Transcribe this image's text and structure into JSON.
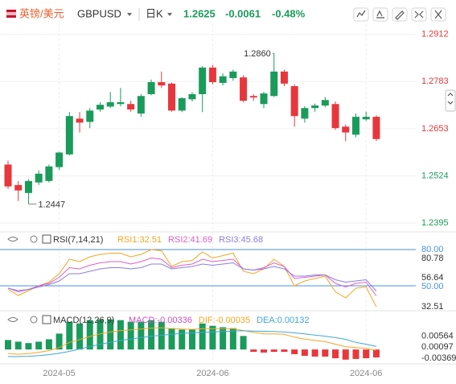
{
  "header": {
    "name": "英镑/美元",
    "symbol": "GBPUSD",
    "period": "日K",
    "price": "1.2625",
    "change": "-0.0061",
    "change_pct": "-0.48%"
  },
  "chart_data": [
    {
      "type": "candlestick",
      "up_color": "#1a9b5c",
      "down_color": "#e8373c",
      "categories": [
        null,
        null,
        null,
        null,
        null,
        "2024-05",
        null,
        null,
        null,
        null,
        null,
        null,
        null,
        null,
        null,
        null,
        null,
        null,
        null,
        null,
        "2024-06",
        null,
        null,
        null,
        null,
        null,
        null,
        null,
        null,
        null,
        null,
        null,
        null,
        null,
        null,
        "2024-06",
        null
      ],
      "open": [
        1.2555,
        1.2499,
        1.2477,
        1.2506,
        1.251,
        1.2548,
        1.2583,
        1.2681,
        1.2672,
        1.2706,
        1.2714,
        1.2721,
        1.2721,
        1.2695,
        1.2748,
        1.2781,
        1.2777,
        1.2703,
        1.2734,
        1.2748,
        1.2821,
        1.2779,
        1.2792,
        1.2794,
        1.2743,
        1.2721,
        1.2743,
        1.281,
        1.277,
        1.2681,
        1.271,
        1.2717,
        1.2721,
        1.2659,
        1.2637,
        1.2679,
        1.2686
      ],
      "high": [
        1.2566,
        1.251,
        1.2515,
        1.2539,
        1.2555,
        1.259,
        1.2699,
        1.2699,
        1.271,
        1.2726,
        1.2754,
        1.2765,
        1.273,
        1.2748,
        1.2788,
        1.281,
        1.278,
        1.274,
        1.2754,
        1.2825,
        1.2828,
        1.2805,
        1.2815,
        1.28,
        1.2748,
        1.2755,
        1.286,
        1.2815,
        1.2775,
        1.2715,
        1.2722,
        1.274,
        1.2728,
        1.2665,
        1.2695,
        1.27,
        1.269
      ],
      "low": [
        1.2488,
        1.2455,
        1.2447,
        1.2499,
        1.2506,
        1.254,
        1.258,
        1.2643,
        1.2655,
        1.27,
        1.271,
        1.2715,
        1.27,
        1.2686,
        1.2745,
        1.2765,
        1.27,
        1.2699,
        1.2728,
        1.2699,
        1.2775,
        1.2772,
        1.2785,
        1.2726,
        1.273,
        1.271,
        1.274,
        1.277,
        1.2659,
        1.267,
        1.27,
        1.2712,
        1.265,
        1.2619,
        1.263,
        1.2675,
        1.262
      ],
      "close": [
        1.2495,
        1.2484,
        1.251,
        1.253,
        1.255,
        1.2588,
        1.2688,
        1.267,
        1.2703,
        1.2719,
        1.2726,
        1.2726,
        1.2706,
        1.2743,
        1.2781,
        1.2772,
        1.2703,
        1.2737,
        1.2748,
        1.2821,
        1.2781,
        1.2797,
        1.281,
        1.273,
        1.2739,
        1.275,
        1.281,
        1.2777,
        1.2688,
        1.271,
        1.2717,
        1.2732,
        1.2655,
        1.2643,
        1.2686,
        1.2686,
        1.2625
      ],
      "high_label": "1.2860",
      "low_label": "1.2447",
      "ylim": [
        1.2375,
        1.294
      ],
      "yticks": [
        1.2912,
        1.2783,
        1.2653,
        1.2524,
        1.2395
      ],
      "grid": true
    },
    {
      "type": "line",
      "title": "RSI(7,14,21)",
      "series": [
        {
          "name": "RSI1:32.51",
          "color": "#f5a623",
          "values": [
            47,
            42,
            46,
            50,
            53,
            60,
            72,
            70,
            74,
            76,
            77,
            77,
            74,
            76,
            80,
            79,
            66,
            70,
            71,
            78,
            73,
            75,
            77,
            62,
            60,
            64,
            72,
            66,
            50,
            54,
            56,
            58,
            45,
            40,
            48,
            49,
            32.51
          ]
        },
        {
          "name": "RSI2:41.69",
          "color": "#dd5fc2",
          "values": [
            48,
            45,
            47,
            50,
            52,
            57,
            65,
            64,
            67,
            69,
            70,
            70,
            68,
            70,
            73,
            72,
            65,
            67,
            68,
            72,
            70,
            71,
            72,
            64,
            63,
            65,
            69,
            66,
            56,
            57,
            58,
            59,
            52,
            49,
            52,
            53,
            41.69
          ]
        },
        {
          "name": "RSI3:45.68",
          "color": "#8b7de0",
          "values": [
            48,
            46,
            47,
            49,
            51,
            54,
            60,
            60,
            62,
            64,
            65,
            65,
            64,
            65,
            68,
            68,
            64,
            65,
            66,
            68,
            67,
            68,
            69,
            64,
            63,
            64,
            66,
            64,
            58,
            58,
            59,
            59,
            55,
            53,
            54,
            55,
            45.68
          ]
        }
      ],
      "ylim": [
        30,
        86.7
      ],
      "yticks": [
        {
          "value": 80,
          "label": "80.00"
        },
        80.78,
        56.64,
        {
          "value": 50,
          "label": "50.00"
        },
        32.51
      ],
      "hlines": [
        80,
        50
      ],
      "hline_color": "#4a90e2"
    },
    {
      "type": "bar",
      "title": "MACD(12,26,9)",
      "name": "MACD:-0.00336",
      "name_color": "#c74fc4",
      "up_color": "#1a9b5c",
      "down_color": "#e8373c",
      "values": [
        0.004,
        0.0033,
        0.0027,
        0.0033,
        0.0043,
        0.0067,
        0.0117,
        0.011,
        0.0124,
        0.0127,
        0.0127,
        0.0124,
        0.0117,
        0.0117,
        0.0124,
        0.0117,
        0.009,
        0.0084,
        0.0084,
        0.011,
        0.01,
        0.0094,
        0.009,
        0.0057,
        -0.001,
        -0.0013,
        -0.001,
        -0.001,
        -0.002,
        -0.0027,
        -0.003,
        -0.003,
        -0.0037,
        -0.0043,
        -0.004,
        -0.0037,
        -0.00336
      ],
      "lines": [
        {
          "name": "DIF:-0.00035",
          "color": "#f5a623",
          "values": [
            -0.0017,
            -0.002,
            -0.0018,
            -0.0012,
            -0.0005,
            0.0008,
            0.003,
            0.0042,
            0.0055,
            0.0066,
            0.0074,
            0.008,
            0.0083,
            0.0086,
            0.009,
            0.0092,
            0.0088,
            0.0086,
            0.0085,
            0.0088,
            0.0088,
            0.0088,
            0.0088,
            0.008,
            0.0072,
            0.0066,
            0.0066,
            0.0064,
            0.0052,
            0.0044,
            0.0038,
            0.0033,
            0.0022,
            0.0012,
            0.0008,
            0.0005,
            -0.00035
          ]
        },
        {
          "name": "DEA:0.00132",
          "color": "#3fa7d6",
          "values": [
            -0.003,
            -0.003,
            -0.0029,
            -0.0026,
            -0.0022,
            -0.0016,
            -0.0008,
            0.0002,
            0.0012,
            0.0022,
            0.003,
            0.0038,
            0.0044,
            0.005,
            0.0056,
            0.006,
            0.0064,
            0.0068,
            0.007,
            0.0072,
            0.0074,
            0.0076,
            0.0078,
            0.0079,
            0.0078,
            0.0077,
            0.0076,
            0.0074,
            0.007,
            0.0066,
            0.0061,
            0.0056,
            0.005,
            0.0043,
            0.003,
            0.0022,
            0.00132
          ]
        }
      ],
      "ylim": [
        -0.0054,
        0.0133
      ],
      "yticks": [
        0.00564,
        0.00097,
        -0.00369
      ]
    }
  ]
}
